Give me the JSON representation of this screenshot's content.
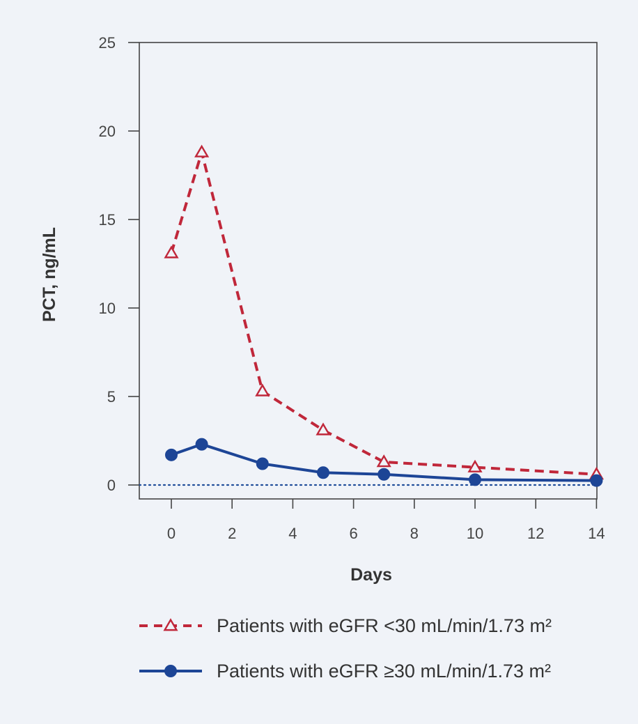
{
  "chart_data": {
    "type": "line",
    "xlabel": "Days",
    "ylabel": "PCT, ng/mL",
    "xlim": [
      -1,
      14
    ],
    "ylim": [
      -0.8,
      25
    ],
    "xticks": [
      0,
      2,
      4,
      6,
      8,
      10,
      12,
      14
    ],
    "yticks": [
      0,
      5,
      10,
      15,
      20,
      25
    ],
    "grid": false,
    "reference_line": {
      "y": 0,
      "style": "dotted",
      "color": "#1f4d9a"
    },
    "legend_position": "bottom",
    "series": [
      {
        "name": "Patients with eGFR <30 mL/min/1.73 m²",
        "color": "#c0273a",
        "line_style": "dashed",
        "marker": "open-triangle",
        "x": [
          0,
          1,
          3,
          5,
          7,
          10,
          14
        ],
        "y": [
          13.1,
          18.8,
          5.3,
          3.1,
          1.3,
          1.0,
          0.6
        ]
      },
      {
        "name": "Patients with eGFR ≥30 mL/min/1.73 m²",
        "color": "#1d4596",
        "line_style": "solid",
        "marker": "filled-circle",
        "x": [
          0,
          1,
          3,
          5,
          7,
          10,
          14
        ],
        "y": [
          1.7,
          2.3,
          1.2,
          0.7,
          0.6,
          0.3,
          0.25
        ]
      }
    ]
  }
}
